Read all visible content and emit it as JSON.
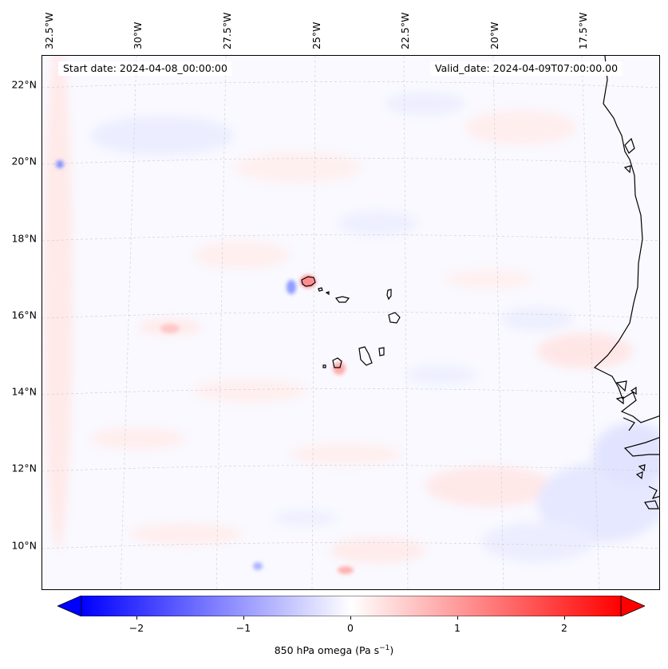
{
  "header": {
    "start_date": "Start date: 2024-04-08_00:00:00",
    "valid_date": "Valid_date: 2024-04-09T07:00:00.00"
  },
  "map": {
    "lon_labels": [
      "32.5°W",
      "30°W",
      "27.5°W",
      "25°W",
      "22.5°W",
      "20°W",
      "17.5°W"
    ],
    "lat_labels": [
      "22°N",
      "20°N",
      "18°N",
      "16°N",
      "14°N",
      "12°N",
      "10°N"
    ],
    "gridlines": true,
    "coastline_color": "#000000"
  },
  "colorbar": {
    "ticks": [
      "−2",
      "−1",
      "0",
      "1",
      "2"
    ],
    "label_main": "850 hPa omega (Pa s",
    "label_sup": "−1",
    "label_end": ")",
    "colormap": "bwr",
    "range": [
      -2.6,
      2.6
    ],
    "extend": "both",
    "colors": {
      "min": "#0000ff",
      "mid": "#ffffff",
      "max": "#ff0000"
    }
  }
}
